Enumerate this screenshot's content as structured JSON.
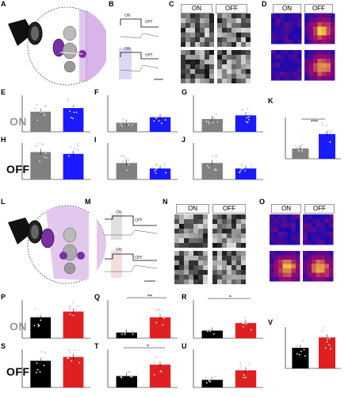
{
  "panels": [
    "A",
    "B",
    "C",
    "D",
    "E",
    "F",
    "G",
    "H",
    "I",
    "J",
    "K",
    "L",
    "M",
    "N",
    "O",
    "P",
    "Q",
    "R",
    "S",
    "T",
    "U",
    "V"
  ],
  "side_labels": {
    "on": "ON",
    "off": "OFF"
  },
  "map_headers": {
    "on": "ON",
    "off": "OFF"
  },
  "trace_labels": {
    "on": "ON",
    "off": "OFF"
  },
  "significance": {
    "K": "***",
    "Q": "**",
    "R": "*",
    "T": "*"
  },
  "colors": {
    "control": "#808080",
    "top_cond": "#1a1aff",
    "top_cond_light": "#b3b3f0",
    "bottom_cond": "#e02020",
    "bottom_cond_light": "#f2c8c8",
    "bottom_ctrl": "#000000",
    "eye_purple": "#7b2fa6",
    "brain_purple": "#c9a0dc",
    "heat_low": "#000020",
    "heat_high": "#fff2a0"
  },
  "chart_data": [
    {
      "panel": "E",
      "type": "bar",
      "values": [
        0.55,
        0.65
      ]
    },
    {
      "panel": "F",
      "type": "bar",
      "values": [
        0.25,
        0.4
      ]
    },
    {
      "panel": "G",
      "type": "bar",
      "values": [
        0.35,
        0.45
      ]
    },
    {
      "panel": "H",
      "type": "bar",
      "values": [
        0.75,
        0.7
      ]
    },
    {
      "panel": "I",
      "type": "bar",
      "values": [
        0.45,
        0.3
      ]
    },
    {
      "panel": "J",
      "type": "bar",
      "values": [
        0.45,
        0.3
      ]
    },
    {
      "panel": "K",
      "type": "bar",
      "values": [
        0.25,
        0.6
      ]
    },
    {
      "panel": "P",
      "type": "bar",
      "values": [
        0.55,
        0.7
      ]
    },
    {
      "panel": "Q",
      "type": "bar",
      "values": [
        0.15,
        0.55
      ]
    },
    {
      "panel": "R",
      "type": "bar",
      "values": [
        0.2,
        0.4
      ]
    },
    {
      "panel": "S",
      "type": "bar",
      "values": [
        0.7,
        0.8
      ]
    },
    {
      "panel": "T",
      "type": "bar",
      "values": [
        0.3,
        0.6
      ]
    },
    {
      "panel": "U",
      "type": "bar",
      "values": [
        0.2,
        0.45
      ]
    },
    {
      "panel": "V",
      "type": "bar",
      "values": [
        0.5,
        0.75
      ]
    }
  ]
}
